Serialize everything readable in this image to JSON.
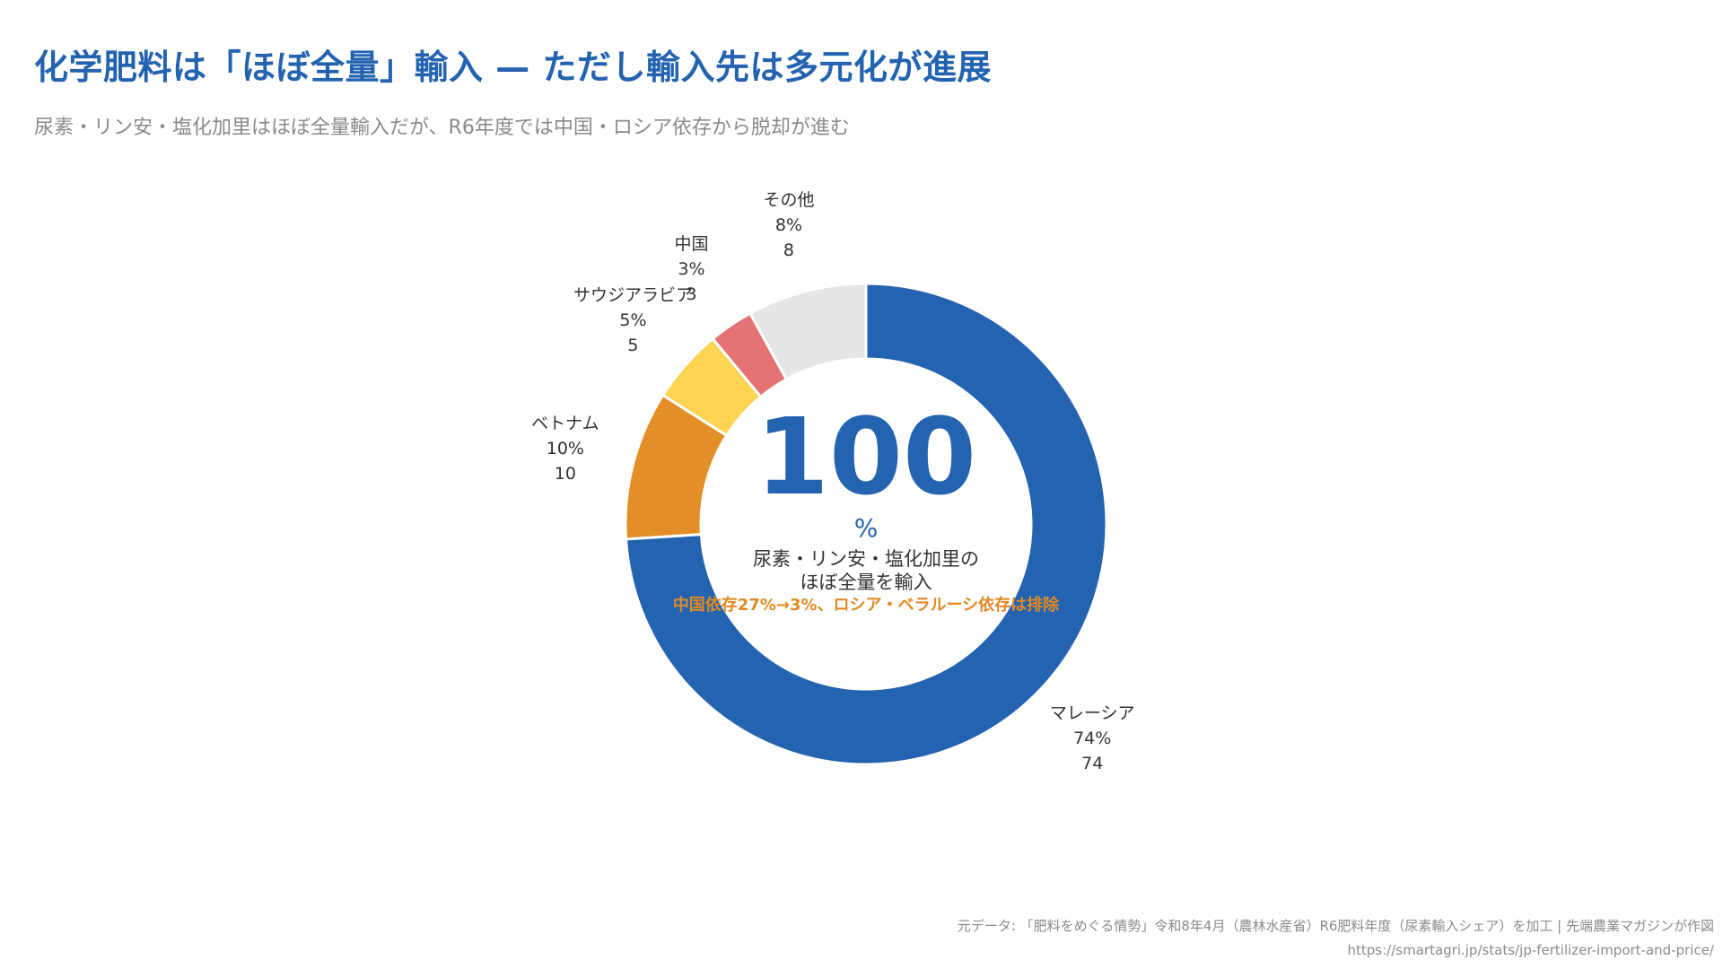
{
  "header": {
    "title": "化学肥料は「ほぼ全量」輸入 — ただし輸入先は多元化が進展",
    "subtitle": "尿素・リン安・塩化加里はほぼ全量輸入だが、R6年度では中国・ロシア依存から脱却が進む"
  },
  "chart_data": {
    "type": "pie",
    "donut": true,
    "series": [
      {
        "name": "マレーシア",
        "value": 74,
        "percent_label": "74%",
        "value_label": "74",
        "color": "#2463b0"
      },
      {
        "name": "ベトナム",
        "value": 10,
        "percent_label": "10%",
        "value_label": "10",
        "color": "#e38e26"
      },
      {
        "name": "サウジアラビア",
        "value": 5,
        "percent_label": "5%",
        "value_label": "5",
        "color": "#fdd552"
      },
      {
        "name": "中国",
        "value": 3,
        "percent_label": "3%",
        "value_label": "3",
        "color": "#e57373"
      },
      {
        "name": "その他",
        "value": 8,
        "percent_label": "8%",
        "value_label": "8",
        "color": "#e6e6e6"
      }
    ],
    "center": {
      "value": "100",
      "unit": "%",
      "line1": "尿素・リン安・塩化加里の",
      "line2": "ほぼ全量を輸入",
      "note": "中国依存27%→3%、ロシア・ベラルーシ依存は排除"
    }
  },
  "footer": {
    "source_line1": "元データ: 「肥料をめぐる情勢」令和8年4月（農林水産省）R6肥料年度（尿素輸入シェア）を加工 | 先端農業マガジンが作図",
    "source_line2": "https://smartagri.jp/stats/jp-fertilizer-import-and-price/"
  }
}
